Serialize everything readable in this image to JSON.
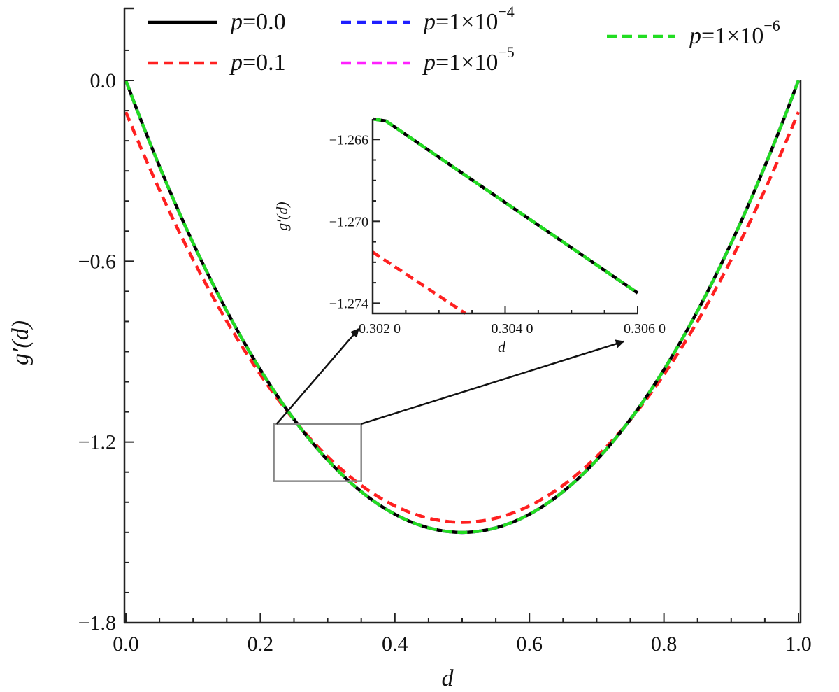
{
  "chart_data": {
    "type": "line",
    "xlabel": "d",
    "ylabel": "g′(d)",
    "xlim": [
      0,
      1
    ],
    "ylim": [
      -1.8,
      0.1
    ],
    "grid": false,
    "legend_position": "top",
    "x_ticks": [
      "0.0",
      "0.2",
      "0.4",
      "0.6",
      "0.8",
      "1.0"
    ],
    "y_ticks": [
      "0.0",
      "−0.6",
      "−1.2",
      "−1.8"
    ],
    "series": [
      {
        "name": "p=0.0",
        "p_label": "p",
        "value_label": "=0.0",
        "color": "#000000",
        "dash": "solid",
        "x": [
          0.0,
          0.1,
          0.2,
          0.3,
          0.4,
          0.5,
          0.6,
          0.7,
          0.8,
          0.9,
          1.0
        ],
        "y": [
          0.0,
          -0.54,
          -0.96,
          -1.26,
          -1.44,
          -1.5,
          -1.44,
          -1.26,
          -0.96,
          -0.54,
          0.0
        ]
      },
      {
        "name": "p=0.1",
        "p_label": "p",
        "value_label": "=0.1",
        "color": "#ff2020",
        "dash": "dashed",
        "x": [
          0.0,
          0.1,
          0.2,
          0.3,
          0.4,
          0.5,
          0.6,
          0.7,
          0.8,
          0.9,
          1.0
        ],
        "y": [
          -0.1,
          -0.6,
          -0.98,
          -1.25,
          -1.41,
          -1.46,
          -1.41,
          -1.25,
          -0.98,
          -0.6,
          -0.1
        ]
      },
      {
        "name": "p=1×10⁻⁴",
        "p_label": "p",
        "value_label": "=1×10",
        "exponent": "−4",
        "color": "#1f1fff",
        "dash": "dashed",
        "x": [
          0.0,
          0.1,
          0.2,
          0.3,
          0.4,
          0.5,
          0.6,
          0.7,
          0.8,
          0.9,
          1.0
        ],
        "y": [
          0.0,
          -0.54,
          -0.96,
          -1.26,
          -1.44,
          -1.5,
          -1.44,
          -1.26,
          -0.96,
          -0.54,
          0.0
        ]
      },
      {
        "name": "p=1×10⁻⁵",
        "p_label": "p",
        "value_label": "=1×10",
        "exponent": "−5",
        "color": "#ff20ff",
        "dash": "dashed",
        "x": [
          0.0,
          0.1,
          0.2,
          0.3,
          0.4,
          0.5,
          0.6,
          0.7,
          0.8,
          0.9,
          1.0
        ],
        "y": [
          0.0,
          -0.54,
          -0.96,
          -1.26,
          -1.44,
          -1.5,
          -1.44,
          -1.26,
          -0.96,
          -0.54,
          0.0
        ]
      },
      {
        "name": "p=1×10⁻⁶",
        "p_label": "p",
        "value_label": "=1×10",
        "exponent": "−6",
        "color": "#22dd22",
        "dash": "dashed",
        "x": [
          0.0,
          0.1,
          0.2,
          0.3,
          0.4,
          0.5,
          0.6,
          0.7,
          0.8,
          0.9,
          1.0
        ],
        "y": [
          0.0,
          -0.54,
          -0.96,
          -1.26,
          -1.44,
          -1.5,
          -1.44,
          -1.26,
          -0.96,
          -0.54,
          0.0
        ]
      }
    ],
    "zoom_box": {
      "xlim": [
        0.22,
        0.35
      ],
      "ylim": [
        -1.33,
        -1.14
      ]
    },
    "inset": {
      "xlabel": "d",
      "ylabel": "g′(d)",
      "xlim": [
        0.302,
        0.306
      ],
      "ylim": [
        -1.2745,
        -1.265
      ],
      "x_ticks": [
        "0.302 0",
        "0.304 0",
        "0.306 0"
      ],
      "y_ticks": [
        "−1.266",
        "−1.270",
        "−1.274"
      ],
      "series": [
        {
          "name": "p=0.0",
          "color": "#000000",
          "dash": "solid",
          "x": [
            0.302,
            0.3022,
            0.306
          ],
          "y": [
            -1.265,
            -1.2651,
            -1.2735
          ]
        },
        {
          "name": "p=0.1",
          "color": "#ff2020",
          "dash": "dashed",
          "x": [
            0.302,
            0.3034
          ],
          "y": [
            -1.2715,
            -1.2745
          ]
        },
        {
          "name": "p=1×10⁻⁶",
          "color": "#22dd22",
          "dash": "dashed",
          "x": [
            0.302,
            0.3022,
            0.306
          ],
          "y": [
            -1.265,
            -1.2651,
            -1.2735
          ]
        }
      ]
    }
  }
}
